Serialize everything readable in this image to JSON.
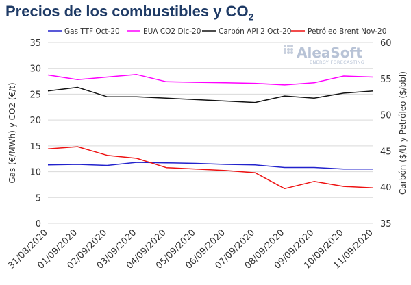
{
  "chart_data": {
    "type": "line",
    "title": "Precios de los combustibles y CO",
    "title_subscript": "2",
    "categories": [
      "31/08/2020",
      "01/09/2020",
      "02/09/2020",
      "03/09/2020",
      "04/09/2020",
      "05/09/2020",
      "06/09/2020",
      "07/09/2020",
      "08/09/2020",
      "09/09/2020",
      "10/09/2020",
      "11/09/2020"
    ],
    "ylabel_left": "Gas (€/MWh) y CO2 (€/t)",
    "ylabel_right": "Carbón ($/t) y Petróleo ($/bbl)",
    "ylim_left": [
      0,
      35
    ],
    "yticks_left": [
      0,
      5,
      10,
      15,
      20,
      25,
      30,
      35
    ],
    "ylim_right": [
      35,
      60
    ],
    "yticks_right": [
      35,
      40,
      45,
      50,
      55,
      60
    ],
    "grid": "horizontal",
    "legend_position": "top",
    "series": [
      {
        "name": "Gas TTF Oct-20",
        "axis": "left",
        "color": "#2222cc",
        "values": [
          11.3,
          11.4,
          11.2,
          11.8,
          11.7,
          11.6,
          11.4,
          11.3,
          10.8,
          10.8,
          10.5,
          10.5
        ]
      },
      {
        "name": "EUA CO2 Dic-20",
        "axis": "left",
        "color": "#ff00ff",
        "values": [
          28.7,
          27.8,
          28.3,
          28.8,
          27.4,
          27.3,
          27.2,
          27.1,
          26.8,
          27.2,
          28.5,
          28.3
        ]
      },
      {
        "name": "Carbón API 2 Oct-20",
        "axis": "right",
        "color": "#111111",
        "values": [
          53.3,
          53.8,
          52.5,
          52.5,
          52.3,
          52.1,
          51.9,
          51.7,
          52.6,
          52.3,
          53.0,
          53.3
        ]
      },
      {
        "name": "Petróleo Brent Nov-20",
        "axis": "right",
        "color": "#ee1111",
        "values": [
          45.3,
          45.6,
          44.4,
          44.0,
          42.7,
          42.5,
          42.3,
          42.0,
          39.8,
          40.8,
          40.1,
          39.9
        ]
      }
    ]
  },
  "logo": {
    "name": "AleaSoft",
    "tagline": "ENERGY FORECASTING"
  }
}
